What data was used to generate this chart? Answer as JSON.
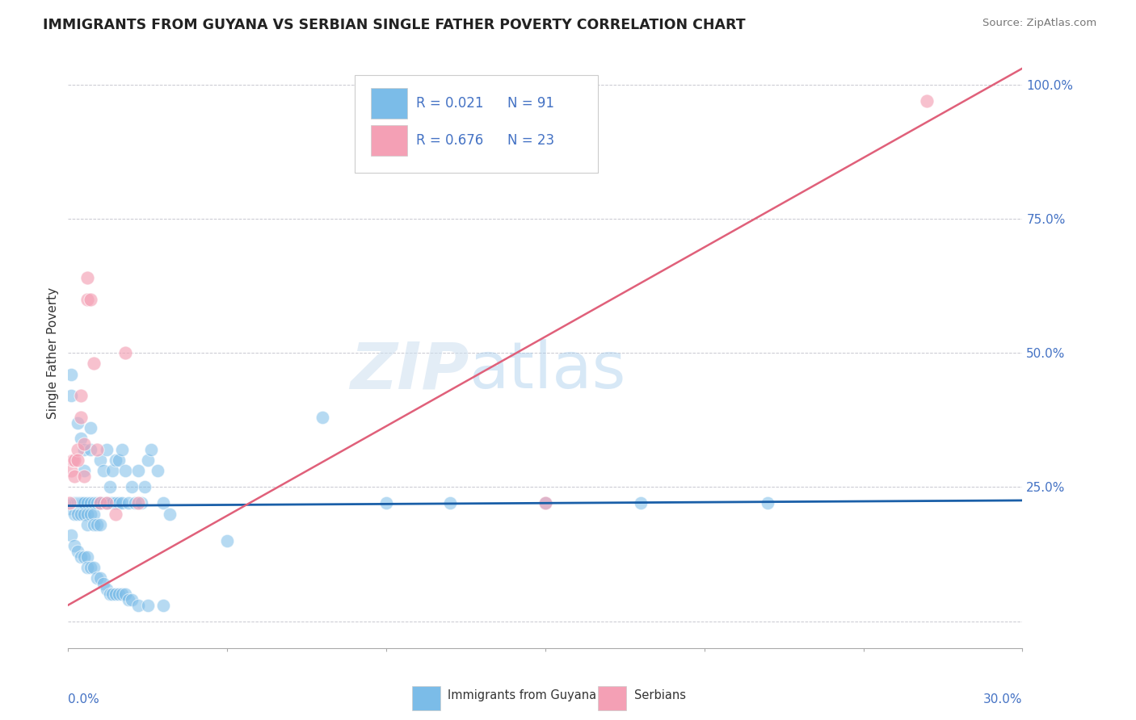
{
  "title": "IMMIGRANTS FROM GUYANA VS SERBIAN SINGLE FATHER POVERTY CORRELATION CHART",
  "source": "Source: ZipAtlas.com",
  "ylabel": "Single Father Poverty",
  "y_ticks": [
    0.0,
    0.25,
    0.5,
    0.75,
    1.0
  ],
  "y_tick_labels": [
    "",
    "25.0%",
    "50.0%",
    "75.0%",
    "100.0%"
  ],
  "x_range": [
    0.0,
    0.3
  ],
  "y_range": [
    -0.05,
    1.05
  ],
  "r1": 0.021,
  "r2": 0.676,
  "legend_r1": "0.021",
  "legend_n1": "91",
  "legend_r2": "0.676",
  "legend_n2": "23",
  "legend_label1": "Immigrants from Guyana",
  "legend_label2": "Serbians",
  "blue_color": "#7bbce8",
  "pink_color": "#f4a0b5",
  "blue_line_color": "#1a5fa8",
  "pink_line_color": "#e0607a",
  "blue_points_x": [
    0.0005,
    0.001,
    0.001,
    0.0015,
    0.002,
    0.002,
    0.0025,
    0.003,
    0.003,
    0.003,
    0.0035,
    0.004,
    0.004,
    0.004,
    0.0045,
    0.005,
    0.005,
    0.005,
    0.005,
    0.006,
    0.006,
    0.006,
    0.007,
    0.007,
    0.007,
    0.007,
    0.008,
    0.008,
    0.008,
    0.009,
    0.009,
    0.01,
    0.01,
    0.01,
    0.011,
    0.011,
    0.012,
    0.012,
    0.013,
    0.013,
    0.014,
    0.014,
    0.015,
    0.015,
    0.016,
    0.016,
    0.017,
    0.017,
    0.018,
    0.019,
    0.02,
    0.021,
    0.022,
    0.023,
    0.024,
    0.025,
    0.026,
    0.028,
    0.03,
    0.032,
    0.001,
    0.002,
    0.003,
    0.004,
    0.005,
    0.006,
    0.006,
    0.007,
    0.008,
    0.009,
    0.01,
    0.011,
    0.012,
    0.013,
    0.014,
    0.015,
    0.016,
    0.017,
    0.018,
    0.019,
    0.02,
    0.022,
    0.025,
    0.03,
    0.05,
    0.08,
    0.1,
    0.12,
    0.15,
    0.18,
    0.22
  ],
  "blue_points_y": [
    0.21,
    0.46,
    0.42,
    0.22,
    0.22,
    0.2,
    0.22,
    0.37,
    0.22,
    0.2,
    0.22,
    0.34,
    0.22,
    0.2,
    0.22,
    0.32,
    0.28,
    0.22,
    0.2,
    0.22,
    0.2,
    0.18,
    0.36,
    0.32,
    0.22,
    0.2,
    0.22,
    0.2,
    0.18,
    0.22,
    0.18,
    0.3,
    0.22,
    0.18,
    0.28,
    0.22,
    0.32,
    0.22,
    0.25,
    0.22,
    0.28,
    0.22,
    0.3,
    0.22,
    0.3,
    0.22,
    0.32,
    0.22,
    0.28,
    0.22,
    0.25,
    0.22,
    0.28,
    0.22,
    0.25,
    0.3,
    0.32,
    0.28,
    0.22,
    0.2,
    0.16,
    0.14,
    0.13,
    0.12,
    0.12,
    0.12,
    0.1,
    0.1,
    0.1,
    0.08,
    0.08,
    0.07,
    0.06,
    0.05,
    0.05,
    0.05,
    0.05,
    0.05,
    0.05,
    0.04,
    0.04,
    0.03,
    0.03,
    0.03,
    0.15,
    0.38,
    0.22,
    0.22,
    0.22,
    0.22,
    0.22
  ],
  "pink_points_x": [
    0.0005,
    0.001,
    0.0015,
    0.002,
    0.002,
    0.003,
    0.003,
    0.004,
    0.004,
    0.005,
    0.005,
    0.006,
    0.006,
    0.007,
    0.008,
    0.009,
    0.01,
    0.012,
    0.015,
    0.018,
    0.022,
    0.15,
    0.27
  ],
  "pink_points_y": [
    0.22,
    0.28,
    0.3,
    0.3,
    0.27,
    0.32,
    0.3,
    0.42,
    0.38,
    0.33,
    0.27,
    0.64,
    0.6,
    0.6,
    0.48,
    0.32,
    0.22,
    0.22,
    0.2,
    0.5,
    0.22,
    0.22,
    0.97
  ],
  "blue_line_y_at_0": 0.215,
  "blue_line_y_at_30": 0.225,
  "pink_line_x0": 0.0,
  "pink_line_y0": 0.03,
  "pink_line_x1": 0.3,
  "pink_line_y1": 1.03
}
